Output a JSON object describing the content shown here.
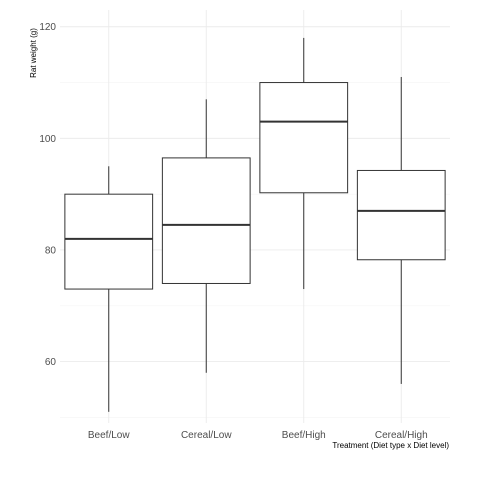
{
  "chart_data": {
    "type": "boxplot",
    "title": "",
    "xlabel": "Treatment (Diet type x Diet level)",
    "ylabel": "Rat weight (g)",
    "ylim": [
      49,
      123
    ],
    "yticks": [
      60,
      80,
      100,
      120
    ],
    "grid": true,
    "legend": "none",
    "categories": [
      "Beef/Low",
      "Cereal/Low",
      "Beef/High",
      "Cereal/High"
    ],
    "boxes": [
      {
        "min": 51,
        "q1": 73,
        "median": 82,
        "q3": 90,
        "max": 95
      },
      {
        "min": 58,
        "q1": 74,
        "median": 84.5,
        "q3": 96.5,
        "max": 107
      },
      {
        "min": 73,
        "q1": 90.25,
        "median": 103,
        "q3": 110,
        "max": 118
      },
      {
        "min": 56,
        "q1": 78.25,
        "median": 87,
        "q3": 94.25,
        "max": 111
      }
    ]
  }
}
